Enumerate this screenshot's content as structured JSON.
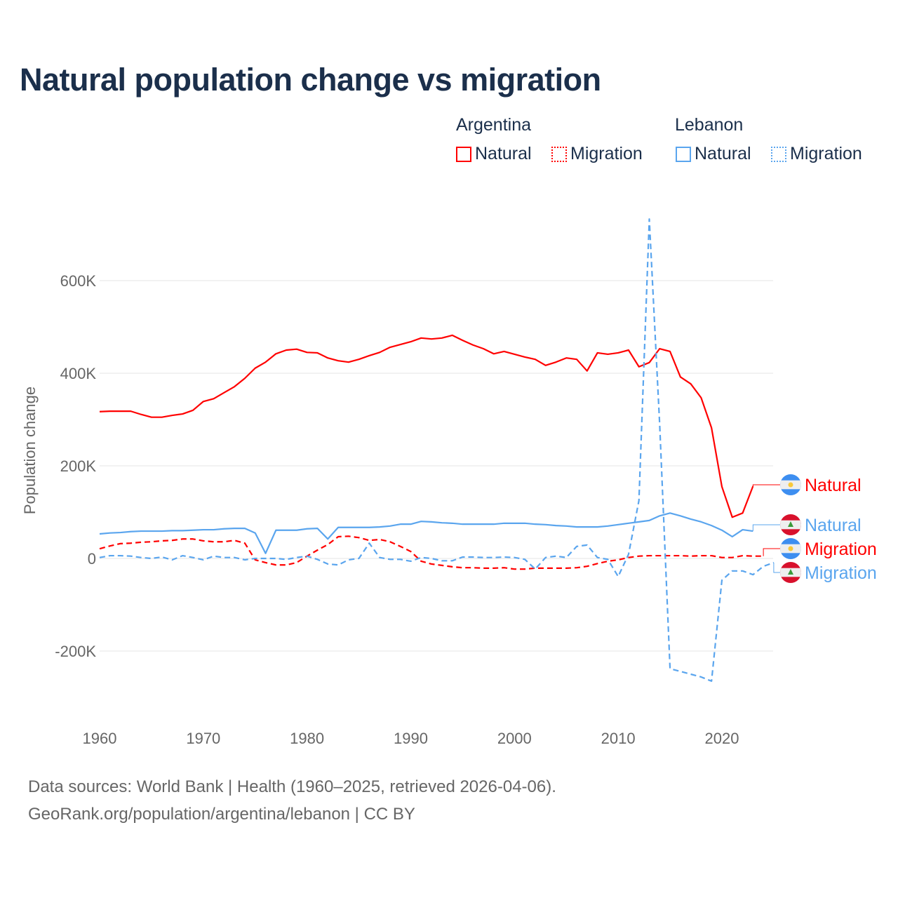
{
  "title": "Natural population change vs migration",
  "legend": {
    "groups": [
      {
        "name": "Argentina",
        "color": "#ff0000",
        "items": [
          "Natural",
          "Migration"
        ]
      },
      {
        "name": "Lebanon",
        "color": "#5aa5ee",
        "items": [
          "Natural",
          "Migration"
        ]
      }
    ]
  },
  "footer": {
    "line1": "Data sources: World Bank | Health (1960–2025, retrieved 2026-04-06).",
    "line2": "GeoRank.org/population/argentina/lebanon | CC BY"
  },
  "chart_data": {
    "type": "line",
    "title": "Natural population change vs migration",
    "xlabel": "",
    "ylabel": "Population change",
    "xlim": [
      1960,
      2025
    ],
    "ylim": [
      -300000,
      750000
    ],
    "x_ticks": [
      1960,
      1970,
      1980,
      1990,
      2000,
      2010,
      2020
    ],
    "x_tick_labels": [
      "1960",
      "1970",
      "1980",
      "1990",
      "2000",
      "2010",
      "2020"
    ],
    "y_ticks": [
      -200000,
      0,
      200000,
      400000,
      600000
    ],
    "y_tick_labels": [
      "-200K",
      "0",
      "200K",
      "400K",
      "600K"
    ],
    "grid": true,
    "legend_position": "top-right",
    "series": [
      {
        "name": "Natural",
        "country": "Argentina",
        "color": "#ff0000",
        "dash": "solid",
        "start_year": 1960,
        "values_k": [
          317,
          318,
          318,
          318,
          311,
          305,
          305,
          309,
          312,
          320,
          339,
          345,
          358,
          371,
          389,
          411,
          424,
          442,
          450,
          452,
          445,
          444,
          433,
          427,
          424,
          430,
          438,
          445,
          456,
          462,
          468,
          476,
          474,
          476,
          482,
          471,
          461,
          453,
          442,
          447,
          441,
          435,
          430,
          417,
          424,
          433,
          430,
          405,
          444,
          441,
          444,
          450,
          414,
          423,
          453,
          447,
          392,
          377,
          347,
          282,
          155,
          89,
          98,
          156
        ]
      },
      {
        "name": "Natural",
        "country": "Lebanon",
        "color": "#5aa5ee",
        "dash": "solid",
        "start_year": 1960,
        "values_k": [
          53,
          55,
          56,
          58,
          59,
          59,
          59,
          60,
          60,
          61,
          62,
          62,
          64,
          65,
          65,
          55,
          11,
          61,
          61,
          61,
          64,
          65,
          42,
          67,
          67,
          67,
          67,
          68,
          70,
          74,
          74,
          80,
          79,
          77,
          76,
          74,
          74,
          74,
          74,
          76,
          76,
          76,
          74,
          73,
          71,
          70,
          68,
          68,
          68,
          70,
          73,
          76,
          79,
          82,
          92,
          98,
          92,
          85,
          79,
          71,
          61,
          47,
          62,
          59
        ]
      },
      {
        "name": "Migration",
        "country": "Argentina",
        "color": "#ff0000",
        "dash": "dashed",
        "start_year": 1960,
        "values_k": [
          21,
          27,
          32,
          33,
          35,
          36,
          38,
          39,
          42,
          42,
          38,
          36,
          36,
          39,
          33,
          -3,
          -9,
          -14,
          -14,
          -9,
          5,
          18,
          30,
          47,
          48,
          45,
          39,
          41,
          36,
          26,
          15,
          -6,
          -12,
          -15,
          -18,
          -20,
          -20,
          -21,
          -21,
          -20,
          -23,
          -23,
          -21,
          -21,
          -21,
          -21,
          -20,
          -17,
          -11,
          -6,
          -3,
          2,
          5,
          6,
          6,
          6,
          6,
          5,
          6,
          6,
          2,
          2,
          6,
          5,
          5
        ]
      },
      {
        "name": "Migration",
        "country": "Lebanon",
        "color": "#5aa5ee",
        "dash": "dashed",
        "start_year": 1960,
        "values_k": [
          2,
          6,
          6,
          5,
          2,
          0,
          3,
          -3,
          6,
          2,
          -3,
          5,
          2,
          2,
          -3,
          0,
          0,
          0,
          -2,
          2,
          5,
          -2,
          -12,
          -14,
          -3,
          0,
          33,
          2,
          -2,
          -2,
          -6,
          2,
          0,
          -5,
          -5,
          3,
          3,
          2,
          2,
          3,
          2,
          -2,
          -23,
          2,
          5,
          2,
          26,
          29,
          2,
          -2,
          -39,
          9,
          125,
          733,
          290,
          -238,
          -244,
          -250,
          -256,
          -265,
          -47,
          -27,
          -27,
          -35,
          -17,
          -9
        ]
      }
    ],
    "end_labels": [
      "Natural",
      "Natural",
      "Migration",
      "Migration"
    ]
  }
}
